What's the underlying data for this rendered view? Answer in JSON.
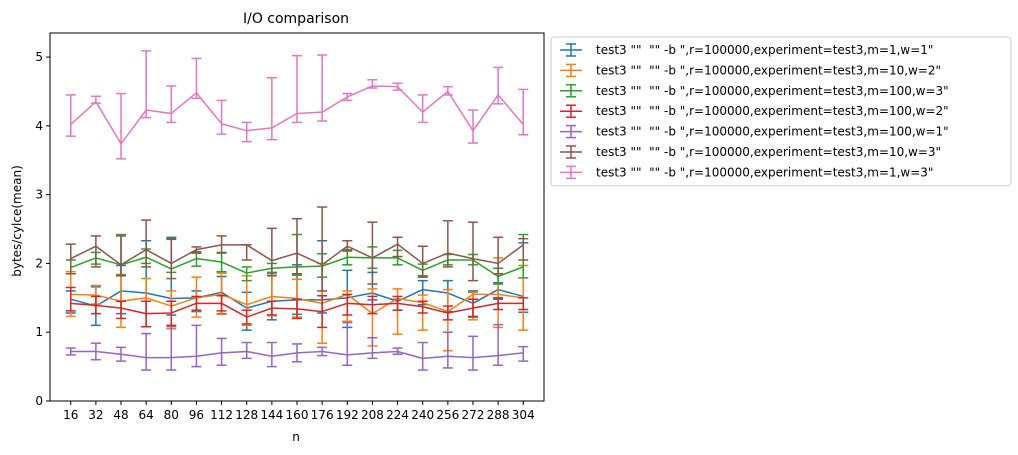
{
  "chart_data": {
    "type": "line",
    "title": "I/O comparison",
    "xlabel": "n",
    "ylabel": "bytes/cylce(mean)",
    "ylim": [
      0,
      5.35
    ],
    "yticks": [
      0,
      1,
      2,
      3,
      4,
      5
    ],
    "grid": false,
    "legend_placement": "outside-right",
    "x": [
      16,
      32,
      48,
      64,
      80,
      96,
      112,
      128,
      144,
      160,
      176,
      192,
      208,
      224,
      240,
      256,
      272,
      288,
      304
    ],
    "series": [
      {
        "name": "test3 \"\"  \"\" -b \",r=100000,experiment=test3,m=1,w=1\"",
        "color": "#1f77b4",
        "values": [
          1.48,
          1.38,
          1.6,
          1.57,
          1.49,
          1.5,
          1.58,
          1.35,
          1.45,
          1.47,
          1.47,
          1.5,
          1.57,
          1.45,
          1.62,
          1.57,
          1.42,
          1.62,
          1.52
        ],
        "err_low": [
          1.28,
          1.1,
          1.27,
          1.08,
          1.25,
          1.3,
          1.27,
          1.03,
          1.18,
          1.26,
          1.28,
          1.07,
          1.47,
          1.32,
          1.4,
          1.3,
          1.23,
          1.48,
          1.29
        ],
        "err_high": [
          1.6,
          1.66,
          1.97,
          2.33,
          2.35,
          1.6,
          1.81,
          1.58,
          1.86,
          1.98,
          2.33,
          1.9,
          1.87,
          1.48,
          1.75,
          1.75,
          1.6,
          1.72,
          2.3
        ]
      },
      {
        "name": "test3 \"\"  \"\" -b \",r=100000,experiment=test3,m=10,w=2\"",
        "color": "#ff7f0e",
        "values": [
          1.55,
          1.54,
          1.45,
          1.5,
          1.38,
          1.5,
          1.55,
          1.4,
          1.52,
          1.49,
          1.42,
          1.55,
          1.27,
          1.49,
          1.43,
          1.3,
          1.55,
          1.55,
          1.5
        ],
        "err_low": [
          1.23,
          1.41,
          1.07,
          1.08,
          1.05,
          1.22,
          1.26,
          1.1,
          1.24,
          1.22,
          0.84,
          1.16,
          0.8,
          0.97,
          1.03,
          0.73,
          1.18,
          1.07,
          1.03
        ],
        "err_high": [
          1.88,
          1.68,
          1.84,
          1.78,
          1.6,
          1.8,
          1.86,
          1.82,
          1.83,
          1.77,
          2.0,
          1.6,
          1.63,
          1.63,
          1.54,
          1.62,
          1.58,
          2.08,
          1.97
        ]
      },
      {
        "name": "test3 \"\"  \"\" -b \",r=100000,experiment=test3,m=100,w=3\"",
        "color": "#2ca02c",
        "values": [
          1.94,
          2.08,
          1.98,
          2.09,
          1.92,
          2.07,
          2.02,
          1.86,
          1.93,
          1.95,
          1.96,
          2.09,
          2.08,
          2.08,
          1.9,
          2.05,
          2.05,
          1.81,
          1.95
        ],
        "err_low": [
          1.85,
          1.99,
          1.83,
          2.0,
          1.87,
          1.96,
          1.88,
          1.75,
          1.87,
          1.83,
          1.8,
          1.98,
          1.93,
          1.98,
          1.82,
          1.98,
          1.98,
          1.7,
          1.79
        ],
        "err_high": [
          2.05,
          2.16,
          2.42,
          2.21,
          2.38,
          2.17,
          2.16,
          1.95,
          2.0,
          2.42,
          2.14,
          2.2,
          2.24,
          2.19,
          1.99,
          2.13,
          2.13,
          1.93,
          2.42
        ]
      },
      {
        "name": "test3 \"\"  \"\" -b \",r=100000,experiment=test3,m=100,w=2\"",
        "color": "#d62728",
        "values": [
          1.42,
          1.39,
          1.35,
          1.27,
          1.28,
          1.42,
          1.42,
          1.22,
          1.35,
          1.34,
          1.3,
          1.42,
          1.4,
          1.42,
          1.37,
          1.28,
          1.35,
          1.42,
          1.42
        ],
        "err_low": [
          1.31,
          1.27,
          1.2,
          1.08,
          1.1,
          1.32,
          1.31,
          1.12,
          1.25,
          1.2,
          1.07,
          1.25,
          1.27,
          1.32,
          1.28,
          1.18,
          1.22,
          1.33,
          1.33
        ],
        "err_high": [
          1.65,
          1.52,
          1.45,
          1.45,
          1.45,
          1.52,
          1.53,
          1.32,
          1.45,
          1.48,
          1.53,
          1.55,
          1.52,
          1.52,
          1.45,
          1.38,
          1.48,
          1.5,
          1.5
        ]
      },
      {
        "name": "test3 \"\"  \"\" -b \",r=100000,experiment=test3,m=100,w=1\"",
        "color": "#9467bd",
        "values": [
          0.72,
          0.72,
          0.68,
          0.63,
          0.63,
          0.65,
          0.7,
          0.72,
          0.65,
          0.7,
          0.72,
          0.67,
          0.7,
          0.72,
          0.62,
          0.65,
          0.63,
          0.66,
          0.7
        ],
        "err_low": [
          0.67,
          0.6,
          0.58,
          0.45,
          0.45,
          0.5,
          0.52,
          0.62,
          0.5,
          0.57,
          0.66,
          0.52,
          0.62,
          0.68,
          0.45,
          0.48,
          0.45,
          0.52,
          0.58
        ],
        "err_high": [
          0.77,
          0.84,
          0.78,
          0.98,
          1.08,
          1.1,
          0.91,
          0.85,
          0.85,
          0.83,
          0.78,
          1.14,
          0.92,
          0.77,
          0.85,
          1.0,
          0.94,
          1.11,
          0.79
        ]
      },
      {
        "name": "test3 \"\"  \"\" -b \",r=100000,experiment=test3,m=10,w=3\"",
        "color": "#8c564b",
        "values": [
          2.07,
          2.25,
          1.98,
          2.2,
          2.0,
          2.2,
          2.27,
          2.27,
          2.04,
          2.15,
          1.98,
          2.25,
          2.08,
          2.28,
          2.0,
          2.15,
          2.07,
          2.0,
          2.27
        ],
        "err_low": [
          1.85,
          1.95,
          1.82,
          1.95,
          1.78,
          2.15,
          2.15,
          2.05,
          1.82,
          1.85,
          1.6,
          2.18,
          1.7,
          2.1,
          1.8,
          1.95,
          1.75,
          1.85,
          2.05
        ],
        "err_high": [
          2.28,
          2.4,
          2.4,
          2.63,
          2.37,
          2.24,
          2.4,
          2.27,
          2.51,
          2.65,
          2.82,
          2.33,
          2.6,
          2.38,
          2.25,
          2.62,
          2.6,
          2.38,
          2.36
        ]
      },
      {
        "name": "test3 \"\"  \"\" -b \",r=100000,experiment=test3,m=1,w=3\"",
        "color": "#e377c2",
        "values": [
          4.02,
          4.35,
          3.74,
          4.23,
          4.18,
          4.48,
          4.03,
          3.93,
          3.97,
          4.18,
          4.2,
          4.42,
          4.58,
          4.57,
          4.2,
          4.5,
          3.93,
          4.45,
          4.02
        ],
        "err_low": [
          3.85,
          4.33,
          3.52,
          4.12,
          4.05,
          4.4,
          3.88,
          3.77,
          3.8,
          4.05,
          4.07,
          4.37,
          4.55,
          4.52,
          4.05,
          4.45,
          3.75,
          4.32,
          3.87
        ],
        "err_high": [
          4.45,
          4.43,
          4.47,
          5.09,
          4.58,
          4.98,
          4.37,
          4.05,
          4.7,
          5.02,
          5.03,
          4.47,
          4.67,
          4.62,
          4.45,
          4.57,
          4.23,
          4.85,
          4.53
        ]
      }
    ]
  }
}
